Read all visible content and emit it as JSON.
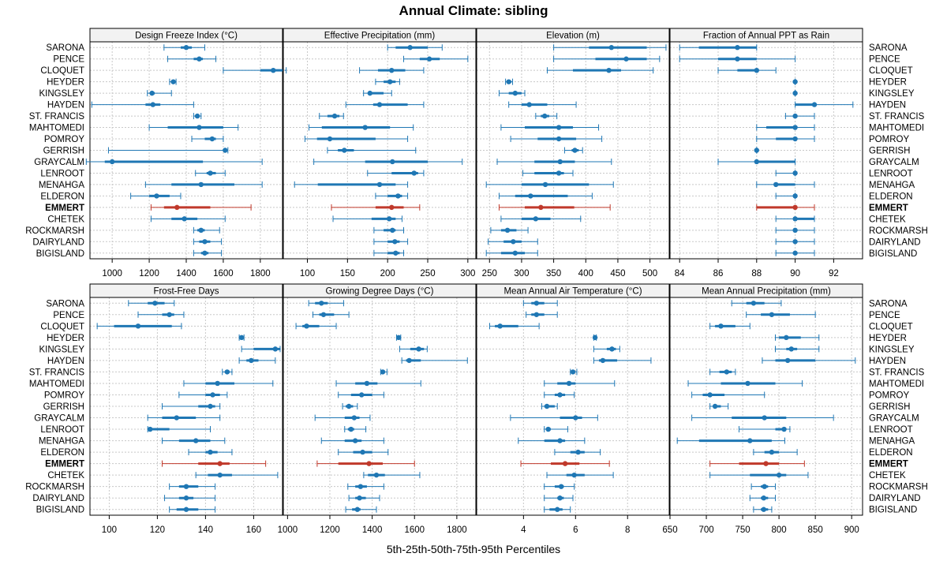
{
  "title": "Annual Climate: sibling",
  "xlabel": "5th-25th-50th-75th-95th Percentiles",
  "colors": {
    "normal": "#1f77b4",
    "highlight": "#c0392b",
    "strip": "#f2f2f2",
    "grid": "#c8c8c8",
    "frame": "#000000"
  },
  "sites": [
    "SARONA",
    "PENCE",
    "CLOQUET",
    "HEYDER",
    "KINGSLEY",
    "HAYDEN",
    "ST. FRANCIS",
    "MAHTOMEDI",
    "POMROY",
    "GERRISH",
    "GRAYCALM",
    "LENROOT",
    "MENAHGA",
    "ELDERON",
    "EMMERT",
    "CHETEK",
    "ROCKMARSH",
    "DAIRYLAND",
    "BIGISLAND"
  ],
  "highlight_site": "EMMERT",
  "chart_data": [
    {
      "type": "percentile-interval",
      "panel": "Design Freeze Index (°C)",
      "xlim": [
        880,
        1920
      ],
      "ticks": [
        1000,
        1200,
        1400,
        1600,
        1800
      ],
      "values": [
        [
          1280,
          1370,
          1400,
          1430,
          1500
        ],
        [
          1300,
          1440,
          1470,
          1490,
          1560
        ],
        [
          1600,
          1800,
          1870,
          1920,
          1940
        ],
        [
          1310,
          1320,
          1330,
          1340,
          1345
        ],
        [
          1190,
          1205,
          1215,
          1230,
          1320
        ],
        [
          890,
          1180,
          1220,
          1260,
          1440
        ],
        [
          1440,
          1455,
          1460,
          1470,
          1480
        ],
        [
          1200,
          1300,
          1470,
          1600,
          1680
        ],
        [
          1430,
          1500,
          1540,
          1560,
          1600
        ],
        [
          980,
          1600,
          1610,
          1620,
          1625
        ],
        [
          860,
          960,
          1000,
          1490,
          1810
        ],
        [
          1450,
          1510,
          1530,
          1560,
          1610
        ],
        [
          1180,
          1320,
          1480,
          1660,
          1810
        ],
        [
          1100,
          1200,
          1240,
          1310,
          1370
        ],
        [
          1210,
          1280,
          1350,
          1530,
          1750
        ],
        [
          1210,
          1320,
          1390,
          1460,
          1610
        ],
        [
          1440,
          1460,
          1480,
          1500,
          1580
        ],
        [
          1440,
          1470,
          1500,
          1530,
          1590
        ],
        [
          1440,
          1480,
          1500,
          1520,
          1590
        ]
      ]
    },
    {
      "type": "percentile-interval",
      "panel": "Effective Precipitation (mm)",
      "xlim": [
        70,
        310
      ],
      "ticks": [
        100,
        150,
        200,
        250,
        300
      ],
      "values": [
        [
          200,
          210,
          228,
          250,
          268
        ],
        [
          220,
          240,
          252,
          265,
          300
        ],
        [
          165,
          188,
          205,
          222,
          245
        ],
        [
          185,
          195,
          203,
          210,
          215
        ],
        [
          170,
          180,
          178,
          195,
          205
        ],
        [
          148,
          182,
          190,
          225,
          245
        ],
        [
          115,
          125,
          134,
          140,
          145
        ],
        [
          102,
          118,
          172,
          203,
          232
        ],
        [
          97,
          112,
          128,
          185,
          225
        ],
        [
          125,
          138,
          146,
          158,
          235
        ],
        [
          108,
          172,
          206,
          250,
          293
        ],
        [
          175,
          205,
          233,
          238,
          245
        ],
        [
          84,
          113,
          190,
          210,
          225
        ],
        [
          185,
          200,
          213,
          218,
          225
        ],
        [
          130,
          185,
          205,
          220,
          240
        ],
        [
          132,
          180,
          202,
          210,
          218
        ],
        [
          183,
          195,
          206,
          210,
          220
        ],
        [
          183,
          200,
          209,
          215,
          225
        ],
        [
          183,
          200,
          210,
          215,
          220
        ]
      ]
    },
    {
      "type": "percentile-interval",
      "panel": "Elevation (m)",
      "xlim": [
        230,
        530
      ],
      "ticks": [
        250,
        300,
        350,
        400,
        450,
        500
      ],
      "values": [
        [
          350,
          405,
          440,
          495,
          525
        ],
        [
          350,
          415,
          463,
          495,
          515
        ],
        [
          340,
          380,
          436,
          455,
          505
        ],
        [
          275,
          277,
          280,
          284,
          286
        ],
        [
          265,
          280,
          290,
          300,
          305
        ],
        [
          280,
          300,
          312,
          340,
          385
        ],
        [
          322,
          330,
          336,
          343,
          355
        ],
        [
          268,
          305,
          358,
          380,
          420
        ],
        [
          283,
          325,
          358,
          385,
          425
        ],
        [
          367,
          378,
          383,
          389,
          395
        ],
        [
          262,
          320,
          360,
          383,
          440
        ],
        [
          302,
          320,
          358,
          366,
          380
        ],
        [
          245,
          300,
          337,
          405,
          443
        ],
        [
          265,
          290,
          314,
          372,
          410
        ],
        [
          265,
          305,
          330,
          382,
          438
        ],
        [
          268,
          300,
          322,
          345,
          392
        ],
        [
          252,
          268,
          278,
          292,
          310
        ],
        [
          248,
          272,
          287,
          300,
          325
        ],
        [
          245,
          268,
          290,
          305,
          325
        ]
      ]
    },
    {
      "type": "percentile-interval",
      "panel": "Fraction of Annual PPT as Rain",
      "xlim": [
        83.5,
        93.5
      ],
      "ticks": [
        84,
        86,
        88,
        90,
        92
      ],
      "values": [
        [
          84,
          85,
          87,
          88,
          88
        ],
        [
          84,
          86,
          87,
          88,
          90
        ],
        [
          86,
          87,
          88,
          88,
          89
        ],
        [
          90,
          90,
          90,
          90,
          90
        ],
        [
          90,
          90,
          90,
          90,
          90
        ],
        [
          90,
          90,
          91,
          91,
          93
        ],
        [
          89.5,
          90,
          90,
          90,
          91
        ],
        [
          88,
          88.5,
          90,
          90,
          91
        ],
        [
          88,
          89,
          90,
          90,
          91
        ],
        [
          88,
          88,
          88,
          88,
          88
        ],
        [
          86,
          88,
          88,
          90,
          90
        ],
        [
          89,
          90,
          90,
          90,
          90
        ],
        [
          88,
          89,
          89,
          90,
          91
        ],
        [
          89,
          90,
          90,
          90,
          90
        ],
        [
          88,
          88,
          90,
          90,
          91
        ],
        [
          89,
          90,
          90,
          91,
          91
        ],
        [
          89,
          90,
          90,
          90,
          91
        ],
        [
          89,
          90,
          90,
          90,
          91
        ],
        [
          89,
          90,
          90,
          90,
          91
        ]
      ]
    },
    {
      "type": "percentile-interval",
      "panel": "Frost-Free Days",
      "xlim": [
        92,
        172
      ],
      "ticks": [
        100,
        120,
        140,
        160
      ],
      "values": [
        [
          108,
          116,
          119,
          123,
          127
        ],
        [
          112,
          122,
          125,
          127,
          131
        ],
        [
          95,
          102,
          112,
          126,
          130
        ],
        [
          154,
          154,
          155,
          155,
          156
        ],
        [
          155,
          160,
          169,
          171,
          171
        ],
        [
          154,
          157,
          159,
          162,
          169
        ],
        [
          147,
          148,
          149,
          150,
          151
        ],
        [
          131,
          140,
          145,
          152,
          168
        ],
        [
          129,
          140,
          143,
          146,
          149
        ],
        [
          122,
          137,
          142,
          144,
          146
        ],
        [
          116,
          122,
          128,
          136,
          146
        ],
        [
          116,
          117,
          117,
          125,
          142
        ],
        [
          122,
          129,
          136,
          142,
          148
        ],
        [
          133,
          140,
          142,
          145,
          151
        ],
        [
          122,
          137,
          146,
          150,
          165
        ],
        [
          136,
          141,
          146,
          151,
          170
        ],
        [
          125,
          129,
          132,
          137,
          144
        ],
        [
          123,
          129,
          132,
          135,
          144
        ],
        [
          125,
          128,
          132,
          137,
          144
        ]
      ]
    },
    {
      "type": "percentile-interval",
      "panel": "Growing Degree Days (°C)",
      "xlim": [
        980,
        1890
      ],
      "ticks": [
        1000,
        1200,
        1400,
        1600,
        1800
      ],
      "values": [
        [
          1100,
          1130,
          1160,
          1190,
          1265
        ],
        [
          1120,
          1150,
          1170,
          1220,
          1290
        ],
        [
          1040,
          1070,
          1090,
          1150,
          1230
        ],
        [
          1515,
          1520,
          1525,
          1530,
          1535
        ],
        [
          1530,
          1580,
          1620,
          1645,
          1660
        ],
        [
          1540,
          1560,
          1575,
          1630,
          1850
        ],
        [
          1440,
          1445,
          1450,
          1460,
          1470
        ],
        [
          1230,
          1320,
          1375,
          1425,
          1630
        ],
        [
          1240,
          1300,
          1350,
          1400,
          1455
        ],
        [
          1260,
          1275,
          1290,
          1310,
          1330
        ],
        [
          1130,
          1270,
          1315,
          1340,
          1390
        ],
        [
          1270,
          1285,
          1300,
          1315,
          1370
        ],
        [
          1160,
          1270,
          1320,
          1350,
          1455
        ],
        [
          1240,
          1310,
          1355,
          1400,
          1475
        ],
        [
          1140,
          1240,
          1385,
          1450,
          1600
        ],
        [
          1360,
          1380,
          1420,
          1460,
          1625
        ],
        [
          1285,
          1320,
          1345,
          1375,
          1455
        ],
        [
          1290,
          1320,
          1340,
          1370,
          1435
        ],
        [
          1275,
          1305,
          1330,
          1345,
          1420
        ]
      ]
    },
    {
      "type": "percentile-interval",
      "panel": "Mean Annual Air Temperature (°C)",
      "xlim": [
        2.2,
        9.6
      ],
      "ticks": [
        4,
        6,
        8
      ],
      "values": [
        [
          4.0,
          4.3,
          4.5,
          4.8,
          5.3
        ],
        [
          4.1,
          4.3,
          4.5,
          4.8,
          5.3
        ],
        [
          2.7,
          2.9,
          3.1,
          3.8,
          4.6
        ],
        [
          6.7,
          6.72,
          6.75,
          6.78,
          6.8
        ],
        [
          6.7,
          7.2,
          7.4,
          7.55,
          7.7
        ],
        [
          6.7,
          6.9,
          7.05,
          7.6,
          8.9
        ],
        [
          5.8,
          5.85,
          5.9,
          5.95,
          6.05
        ],
        [
          4.8,
          5.3,
          5.75,
          6.0,
          7.5
        ],
        [
          4.8,
          5.2,
          5.4,
          5.6,
          5.95
        ],
        [
          4.7,
          4.8,
          4.9,
          5.2,
          5.3
        ],
        [
          3.5,
          5.4,
          6.0,
          6.25,
          6.85
        ],
        [
          4.8,
          4.9,
          4.95,
          5.05,
          5.7
        ],
        [
          3.8,
          4.8,
          5.4,
          5.6,
          6.35
        ],
        [
          5.2,
          5.8,
          6.1,
          6.35,
          6.95
        ],
        [
          3.9,
          5.05,
          5.6,
          6.15,
          7.3
        ],
        [
          4.9,
          5.65,
          5.95,
          6.35,
          7.45
        ],
        [
          4.8,
          5.2,
          5.45,
          5.55,
          5.95
        ],
        [
          4.8,
          5.3,
          5.4,
          5.55,
          5.9
        ],
        [
          4.8,
          5.0,
          5.3,
          5.5,
          5.8
        ]
      ]
    },
    {
      "type": "percentile-interval",
      "panel": "Mean Annual Precipitation (mm)",
      "xlim": [
        650,
        915
      ],
      "ticks": [
        650,
        700,
        750,
        800,
        850,
        900
      ],
      "values": [
        [
          735,
          755,
          765,
          780,
          803
        ],
        [
          755,
          775,
          790,
          815,
          850
        ],
        [
          705,
          712,
          720,
          740,
          760
        ],
        [
          795,
          800,
          810,
          830,
          855
        ],
        [
          795,
          810,
          817,
          825,
          855
        ],
        [
          777,
          795,
          812,
          850,
          905
        ],
        [
          705,
          718,
          728,
          735,
          740
        ],
        [
          675,
          720,
          757,
          795,
          832
        ],
        [
          680,
          695,
          705,
          725,
          780
        ],
        [
          705,
          710,
          712,
          720,
          730
        ],
        [
          680,
          735,
          780,
          810,
          875
        ],
        [
          745,
          795,
          807,
          810,
          815
        ],
        [
          660,
          690,
          760,
          790,
          808
        ],
        [
          765,
          780,
          790,
          800,
          825
        ],
        [
          705,
          745,
          782,
          800,
          835
        ],
        [
          705,
          760,
          800,
          810,
          840
        ],
        [
          762,
          775,
          780,
          785,
          795
        ],
        [
          760,
          775,
          779,
          785,
          795
        ],
        [
          765,
          775,
          779,
          785,
          790
        ]
      ]
    }
  ]
}
